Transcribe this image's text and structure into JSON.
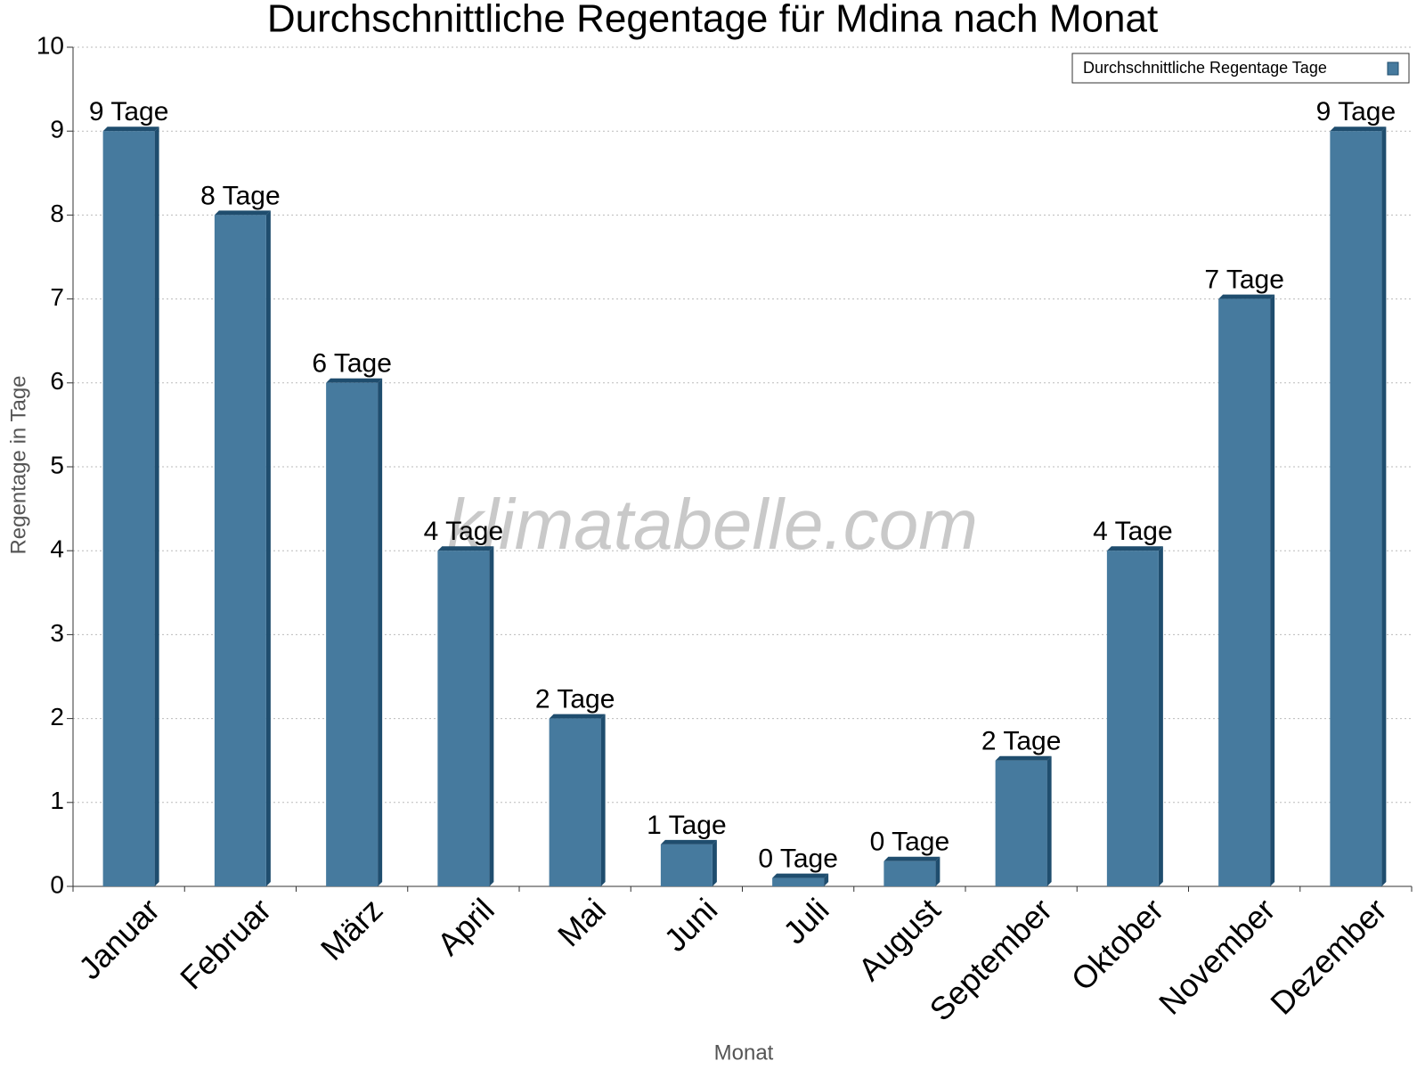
{
  "chart_data": {
    "type": "bar",
    "title": "Durchschnittliche Regentage für Mdina nach Monat",
    "xlabel": "Monat",
    "ylabel": "Regentage in Tage",
    "watermark": "klimatabelle.com",
    "categories": [
      "Januar",
      "Februar",
      "März",
      "April",
      "Mai",
      "Juni",
      "Juli",
      "August",
      "September",
      "Oktober",
      "November",
      "Dezember"
    ],
    "series": [
      {
        "name": "Durchschnittliche Regentage Tage",
        "color": "#467a9e",
        "values": [
          9,
          8,
          6,
          4,
          2,
          0.5,
          0.1,
          0.3,
          1.5,
          4,
          7,
          9
        ],
        "value_labels": [
          "9 Tage",
          "8 Tage",
          "6 Tage",
          "4 Tage",
          "2 Tage",
          "1 Tage",
          "0 Tage",
          "0 Tage",
          "2 Tage",
          "4 Tage",
          "7 Tage",
          "9 Tage"
        ]
      }
    ],
    "ylim": [
      0,
      10
    ],
    "yticks": [
      0,
      1,
      2,
      3,
      4,
      5,
      6,
      7,
      8,
      9,
      10
    ],
    "grid": true,
    "legend": "top-right"
  }
}
